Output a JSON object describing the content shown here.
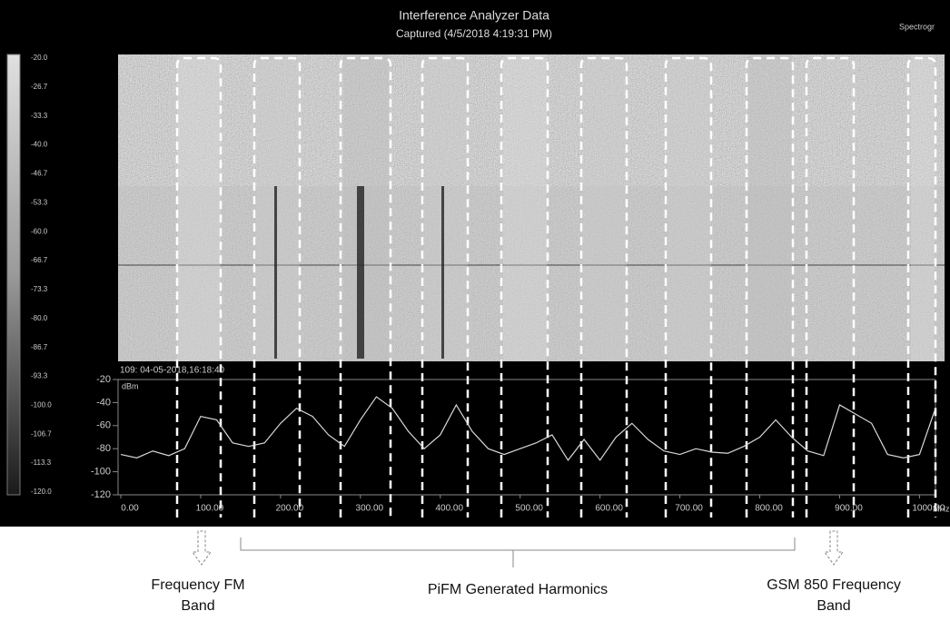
{
  "header": {
    "title": "Interference Analyzer Data",
    "subtitle": "Captured (4/5/2018 4:19:31 PM)",
    "mode": "Spectrogr"
  },
  "color_scale": {
    "labels": [
      "-20.0",
      "-26.7",
      "-33.3",
      "-40.0",
      "-46.7",
      "-53.3",
      "-60.0",
      "-66.7",
      "-73.3",
      "-80.0",
      "-86.7",
      "-93.3",
      "-100.0",
      "-106.7",
      "-113.3",
      "-120.0"
    ]
  },
  "timestamp": "109: 04-05-2018,16:18:40",
  "chart_data": {
    "type": "line",
    "y_unit": "dBm",
    "x_unit": "MHz",
    "x": [
      0,
      20,
      40,
      60,
      80,
      100,
      120,
      140,
      160,
      180,
      200,
      220,
      240,
      260,
      280,
      300,
      320,
      340,
      360,
      380,
      400,
      420,
      440,
      460,
      480,
      500,
      520,
      540,
      560,
      580,
      600,
      620,
      640,
      660,
      680,
      700,
      720,
      740,
      760,
      780,
      800,
      820,
      840,
      860,
      880,
      900,
      920,
      940,
      960,
      980,
      1000,
      1020
    ],
    "series": [
      {
        "color": "#d8d8d8",
        "values": [
          -85,
          -88,
          -82,
          -86,
          -80,
          -52,
          -55,
          -75,
          -78,
          -75,
          -58,
          -45,
          -52,
          -68,
          -78,
          -55,
          -35,
          -45,
          -65,
          -80,
          -68,
          -42,
          -65,
          -80,
          -85,
          -80,
          -75,
          -68,
          -90,
          -72,
          -90,
          -70,
          -58,
          -72,
          -82,
          -85,
          -80,
          -83,
          -84,
          -78,
          -70,
          -55,
          -70,
          -82,
          -86,
          -42,
          -50,
          -58,
          -85,
          -88,
          -85,
          -45
        ]
      }
    ],
    "xlim": [
      0,
      1020
    ],
    "ylim": [
      -120,
      -20
    ],
    "yticks": [
      -20,
      -40,
      -60,
      -80,
      -100,
      -120
    ],
    "xticks": [
      {
        "value": 0,
        "label": "0.00"
      },
      {
        "value": 100,
        "label": "100.00"
      },
      {
        "value": 200,
        "label": "200.00"
      },
      {
        "value": 300,
        "label": "300.00"
      },
      {
        "value": 400,
        "label": "400.00"
      },
      {
        "value": 500,
        "label": "500.00"
      },
      {
        "value": 600,
        "label": "600.00"
      },
      {
        "value": 700,
        "label": "700.00"
      },
      {
        "value": 800,
        "label": "800.00"
      },
      {
        "value": 900,
        "label": "900.00"
      },
      {
        "value": 1000,
        "label": "1000.00"
      }
    ]
  },
  "annotations": [
    {
      "lines": [
        "Frequency FM",
        "Band"
      ]
    },
    {
      "lines": [
        "PiFM Generated Harmonics"
      ]
    },
    {
      "lines": [
        "GSM 850 Frequency",
        "Band"
      ]
    }
  ]
}
